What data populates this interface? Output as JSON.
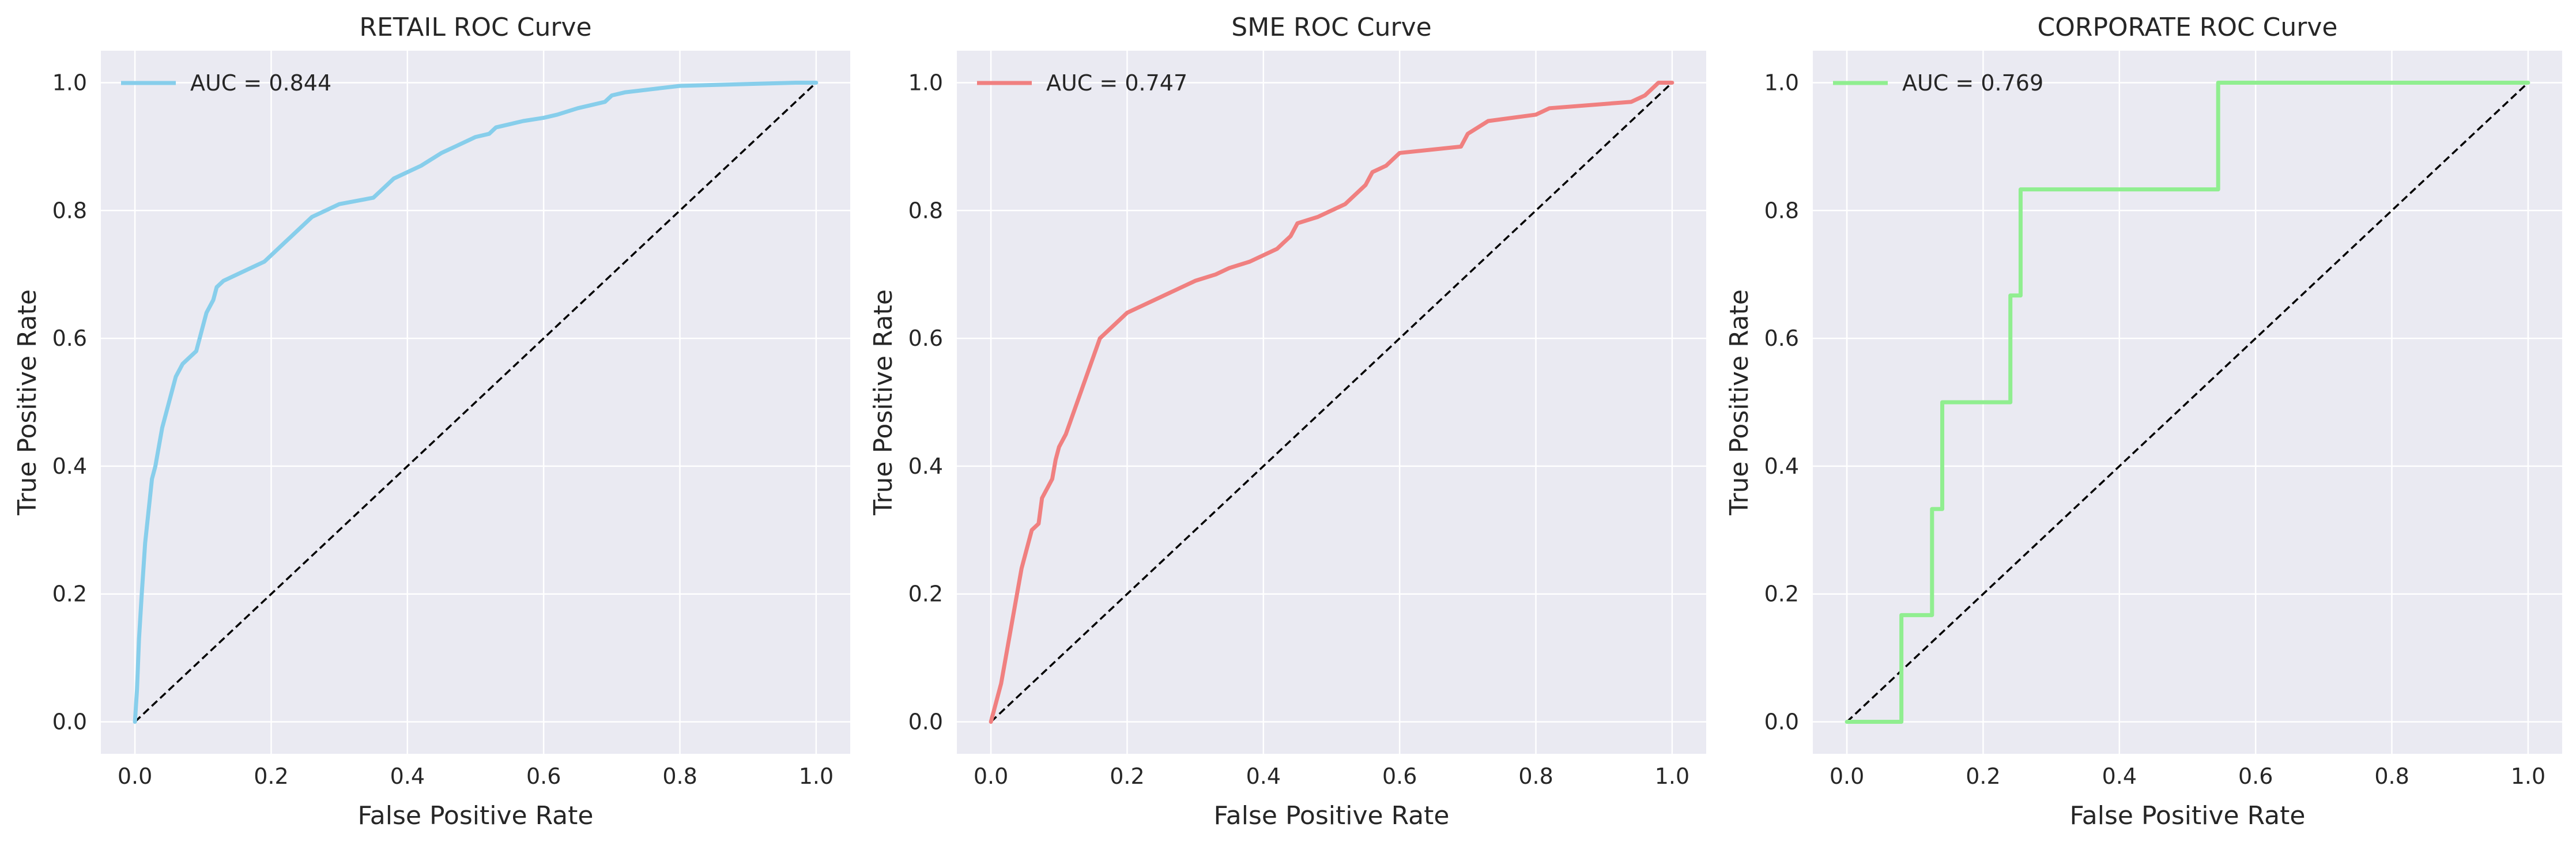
{
  "chart_data": [
    {
      "type": "line",
      "title": "RETAIL ROC Curve",
      "xlabel": "False Positive Rate",
      "ylabel": "True Positive Rate",
      "xlim": [
        -0.05,
        1.05
      ],
      "ylim": [
        -0.05,
        1.05
      ],
      "xticks": [
        0.0,
        0.2,
        0.4,
        0.6,
        0.8,
        1.0
      ],
      "yticks": [
        0.0,
        0.2,
        0.4,
        0.6,
        0.8,
        1.0
      ],
      "xtick_labels": [
        "0.0",
        "0.2",
        "0.4",
        "0.6",
        "0.8",
        "1.0"
      ],
      "ytick_labels": [
        "0.0",
        "0.2",
        "0.4",
        "0.6",
        "0.8",
        "1.0"
      ],
      "grid": true,
      "legend": "upper-left",
      "series": [
        {
          "name": "AUC = 0.844",
          "color": "#87ceeb",
          "x": [
            0.0,
            0.003,
            0.006,
            0.01,
            0.015,
            0.02,
            0.025,
            0.03,
            0.035,
            0.04,
            0.045,
            0.05,
            0.055,
            0.06,
            0.065,
            0.07,
            0.08,
            0.09,
            0.095,
            0.1,
            0.105,
            0.11,
            0.115,
            0.12,
            0.13,
            0.15,
            0.17,
            0.19,
            0.2,
            0.21,
            0.22,
            0.23,
            0.25,
            0.26,
            0.28,
            0.3,
            0.35,
            0.36,
            0.37,
            0.38,
            0.4,
            0.42,
            0.45,
            0.47,
            0.49,
            0.5,
            0.52,
            0.53,
            0.55,
            0.57,
            0.6,
            0.62,
            0.65,
            0.69,
            0.7,
            0.72,
            0.76,
            0.8,
            0.97,
            1.0
          ],
          "y": [
            0.0,
            0.05,
            0.13,
            0.2,
            0.28,
            0.33,
            0.38,
            0.4,
            0.43,
            0.46,
            0.48,
            0.5,
            0.52,
            0.54,
            0.55,
            0.56,
            0.57,
            0.58,
            0.6,
            0.62,
            0.64,
            0.65,
            0.66,
            0.68,
            0.69,
            0.7,
            0.71,
            0.72,
            0.73,
            0.74,
            0.75,
            0.76,
            0.78,
            0.79,
            0.8,
            0.81,
            0.82,
            0.83,
            0.84,
            0.85,
            0.86,
            0.87,
            0.89,
            0.9,
            0.91,
            0.915,
            0.92,
            0.93,
            0.935,
            0.94,
            0.945,
            0.95,
            0.96,
            0.97,
            0.98,
            0.985,
            0.99,
            0.995,
            1.0,
            1.0
          ]
        }
      ]
    },
    {
      "type": "line",
      "title": "SME ROC Curve",
      "xlabel": "False Positive Rate",
      "ylabel": "True Positive Rate",
      "xlim": [
        -0.05,
        1.05
      ],
      "ylim": [
        -0.05,
        1.05
      ],
      "xticks": [
        0.0,
        0.2,
        0.4,
        0.6,
        0.8,
        1.0
      ],
      "yticks": [
        0.0,
        0.2,
        0.4,
        0.6,
        0.8,
        1.0
      ],
      "xtick_labels": [
        "0.0",
        "0.2",
        "0.4",
        "0.6",
        "0.8",
        "1.0"
      ],
      "ytick_labels": [
        "0.0",
        "0.2",
        "0.4",
        "0.6",
        "0.8",
        "1.0"
      ],
      "grid": true,
      "legend": "upper-left",
      "series": [
        {
          "name": "AUC = 0.747",
          "color": "#f08080",
          "x": [
            0.0,
            0.005,
            0.01,
            0.015,
            0.02,
            0.025,
            0.03,
            0.035,
            0.04,
            0.045,
            0.05,
            0.055,
            0.06,
            0.07,
            0.075,
            0.09,
            0.095,
            0.1,
            0.11,
            0.12,
            0.13,
            0.14,
            0.15,
            0.16,
            0.17,
            0.18,
            0.19,
            0.2,
            0.22,
            0.24,
            0.26,
            0.28,
            0.3,
            0.33,
            0.35,
            0.38,
            0.42,
            0.43,
            0.44,
            0.45,
            0.48,
            0.52,
            0.55,
            0.56,
            0.58,
            0.6,
            0.69,
            0.7,
            0.73,
            0.8,
            0.82,
            0.94,
            0.95,
            0.96,
            0.97,
            0.98,
            1.0
          ],
          "y": [
            0.0,
            0.02,
            0.04,
            0.06,
            0.09,
            0.12,
            0.15,
            0.18,
            0.21,
            0.24,
            0.26,
            0.28,
            0.3,
            0.31,
            0.35,
            0.38,
            0.41,
            0.43,
            0.45,
            0.48,
            0.51,
            0.54,
            0.57,
            0.6,
            0.61,
            0.62,
            0.63,
            0.64,
            0.65,
            0.66,
            0.67,
            0.68,
            0.69,
            0.7,
            0.71,
            0.72,
            0.74,
            0.75,
            0.76,
            0.78,
            0.79,
            0.81,
            0.84,
            0.86,
            0.87,
            0.89,
            0.9,
            0.92,
            0.94,
            0.95,
            0.96,
            0.97,
            0.975,
            0.98,
            0.99,
            1.0,
            1.0
          ]
        }
      ]
    },
    {
      "type": "line",
      "title": "CORPORATE ROC Curve",
      "xlabel": "False Positive Rate",
      "ylabel": "True Positive Rate",
      "xlim": [
        -0.05,
        1.05
      ],
      "ylim": [
        -0.05,
        1.05
      ],
      "xticks": [
        0.0,
        0.2,
        0.4,
        0.6,
        0.8,
        1.0
      ],
      "yticks": [
        0.0,
        0.2,
        0.4,
        0.6,
        0.8,
        1.0
      ],
      "xtick_labels": [
        "0.0",
        "0.2",
        "0.4",
        "0.6",
        "0.8",
        "1.0"
      ],
      "ytick_labels": [
        "0.0",
        "0.2",
        "0.4",
        "0.6",
        "0.8",
        "1.0"
      ],
      "grid": true,
      "legend": "upper-left",
      "series": [
        {
          "name": "AUC = 0.769",
          "color": "#90ee90",
          "x": [
            0.0,
            0.08,
            0.08,
            0.125,
            0.125,
            0.14,
            0.14,
            0.24,
            0.24,
            0.255,
            0.255,
            0.545,
            0.545,
            1.0
          ],
          "y": [
            0.0,
            0.0,
            0.167,
            0.167,
            0.333,
            0.333,
            0.5,
            0.5,
            0.667,
            0.667,
            0.833,
            0.833,
            1.0,
            1.0
          ]
        }
      ]
    }
  ],
  "chance_line": {
    "color": "#000000",
    "x": [
      0,
      1
    ],
    "y": [
      0,
      1
    ]
  },
  "colors": {
    "plot_background": "#eaeaf2",
    "grid": "#ffffff",
    "text": "#262626"
  }
}
